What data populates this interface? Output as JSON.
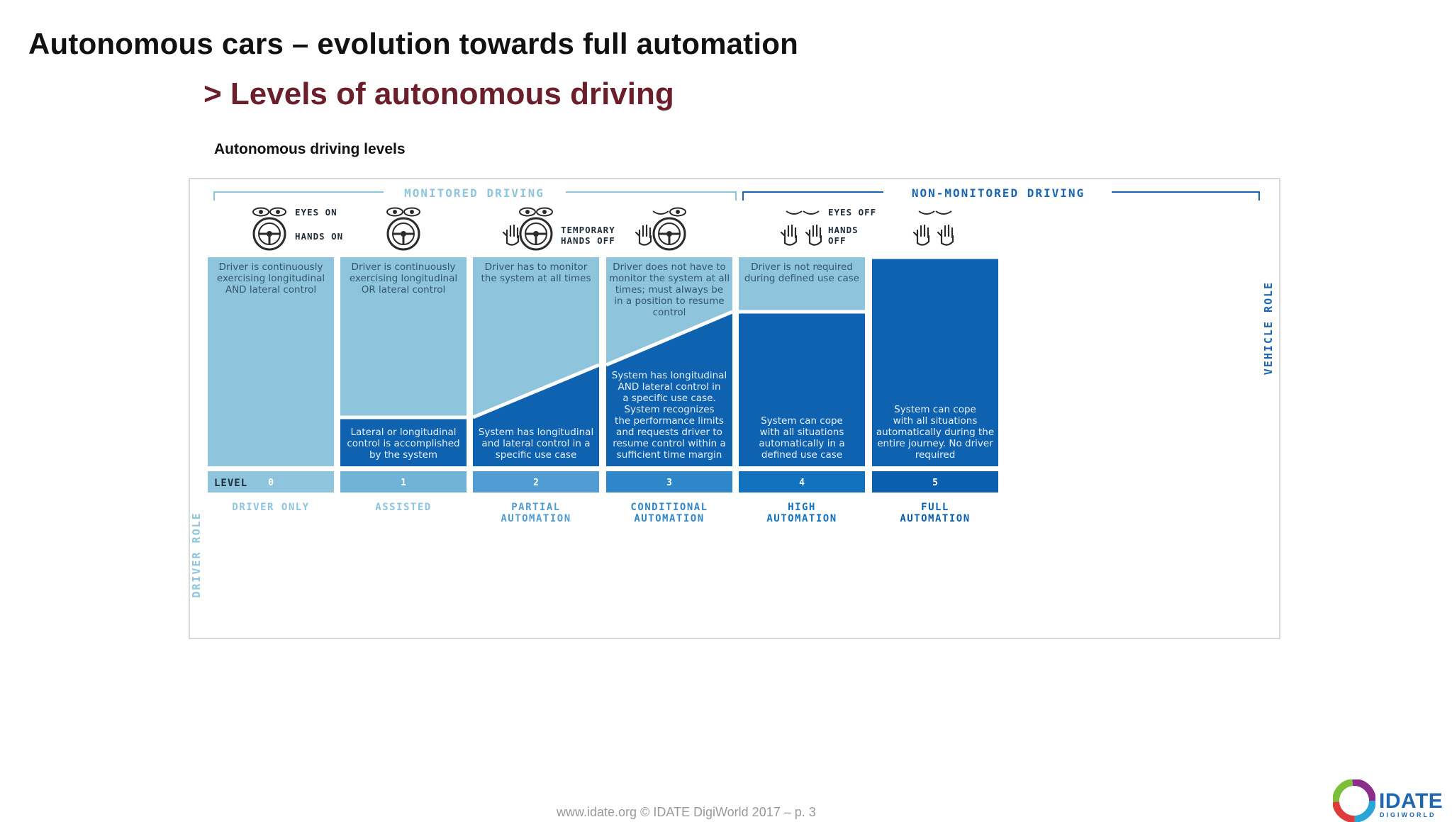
{
  "title": "Autonomous cars – evolution towards full automation",
  "subtitle": "> Levels of autonomous driving",
  "caption": "Autonomous driving levels",
  "groups": {
    "monitored": "MONITORED DRIVING",
    "non_monitored": "NON-MONITORED DRIVING"
  },
  "axis": {
    "driver_role": "DRIVER ROLE",
    "vehicle_role": "VEHICLE ROLE",
    "level_label": "LEVEL"
  },
  "icon_labels": {
    "eyes_on": "EYES ON",
    "hands_on": "HANDS ON",
    "temporary": "TEMPORARY",
    "hands_off_t": "HANDS OFF",
    "eyes_off": "EYES OFF",
    "hands": "HANDS",
    "off": "OFF"
  },
  "levels": [
    {
      "number": "0",
      "name": [
        "DRIVER ONLY"
      ],
      "driver": [
        "Driver is continuously",
        "exercising longitudinal",
        "AND lateral control"
      ],
      "system": []
    },
    {
      "number": "1",
      "name": [
        "ASSISTED"
      ],
      "driver": [
        "Driver is continuously",
        "exercising longitudinal",
        "OR lateral control"
      ],
      "system": [
        "Lateral or longitudinal",
        "control is accomplished",
        "by the system"
      ]
    },
    {
      "number": "2",
      "name": [
        "PARTIAL",
        "AUTOMATION"
      ],
      "driver": [
        "Driver has to monitor",
        "the system at all times"
      ],
      "system": [
        "System has longitudinal",
        "and lateral control in a",
        "specific use case"
      ]
    },
    {
      "number": "3",
      "name": [
        "CONDITIONAL",
        "AUTOMATION"
      ],
      "driver": [
        "Driver does not have to",
        "monitor the system at all",
        "times; must always be",
        "in a position to resume",
        "control"
      ],
      "system": [
        "System has longitudinal",
        "AND lateral control in",
        "a specific use case.",
        "System recognizes",
        "the performance limits",
        "and requests driver to",
        "resume control within a",
        "sufficient time margin"
      ]
    },
    {
      "number": "4",
      "name": [
        "HIGH",
        "AUTOMATION"
      ],
      "driver": [
        "Driver is not required",
        "during defined use case"
      ],
      "system": [
        "System can cope",
        "with all situations",
        "automatically in a",
        "defined use case"
      ]
    },
    {
      "number": "5",
      "name": [
        "FULL",
        "AUTOMATION"
      ],
      "driver": [],
      "system": [
        "System can cope",
        "with all situations",
        "automatically during the",
        "entire journey. No driver",
        "required"
      ]
    }
  ],
  "colors": {
    "light_blue": "#8ec5dc",
    "dark_blue": "#0e62b0",
    "level_0": "#8ec5dc",
    "level_1": "#71b2d9",
    "level_2": "#519cd2",
    "level_3": "#2f86c8",
    "level_4": "#1272be",
    "level_5": "#0a5fae",
    "title_accent": "#6b1f2a"
  },
  "footer": "www.idate.org © IDATE DigiWorld 2017 – p. 3",
  "logo": {
    "name": "IDATE",
    "tagline": "DIGIWORLD"
  }
}
